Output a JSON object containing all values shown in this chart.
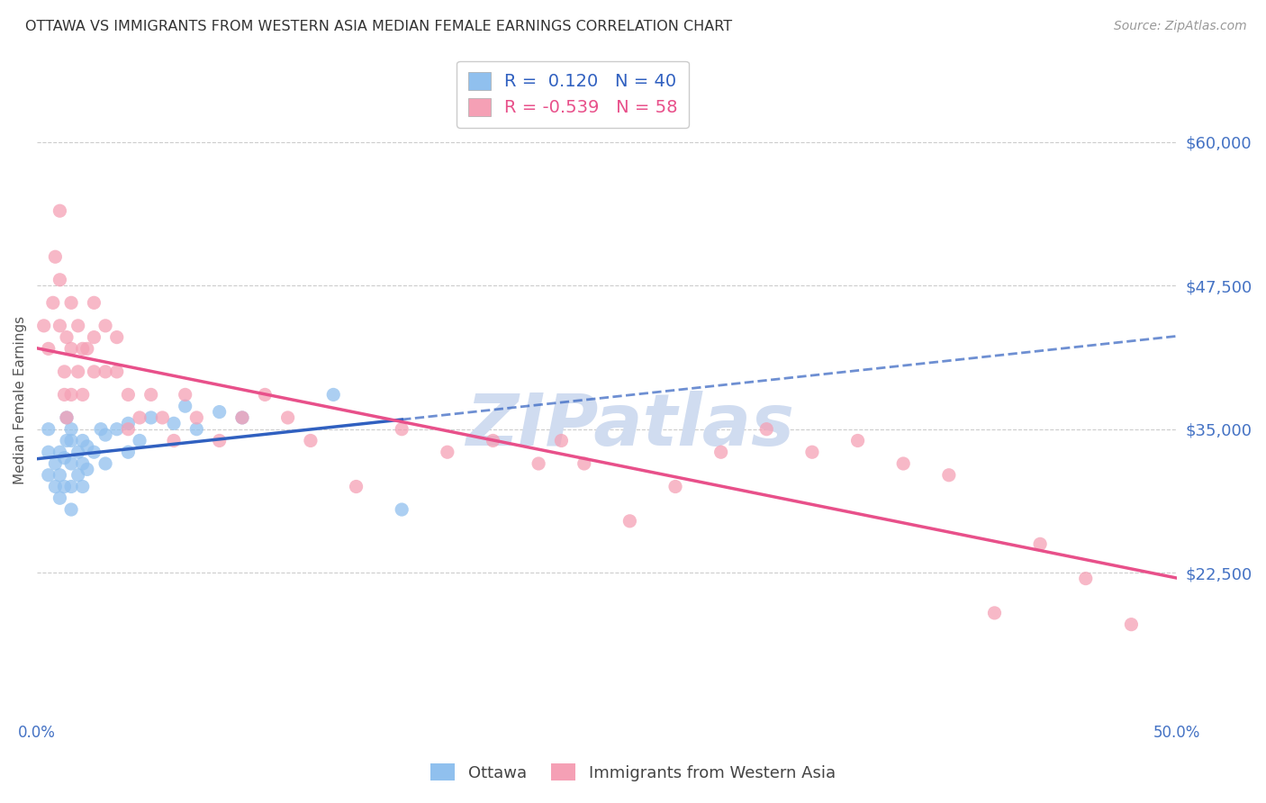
{
  "title": "OTTAWA VS IMMIGRANTS FROM WESTERN ASIA MEDIAN FEMALE EARNINGS CORRELATION CHART",
  "source": "Source: ZipAtlas.com",
  "ylabel": "Median Female Earnings",
  "xlim": [
    0.0,
    0.5
  ],
  "ylim": [
    10000,
    65000
  ],
  "yticks": [
    22500,
    35000,
    47500,
    60000
  ],
  "ytick_labels": [
    "$22,500",
    "$35,000",
    "$47,500",
    "$60,000"
  ],
  "xticks": [
    0.0,
    0.1,
    0.2,
    0.3,
    0.4,
    0.5
  ],
  "xtick_labels": [
    "0.0%",
    "",
    "",
    "",
    "",
    "50.0%"
  ],
  "legend_R1": "0.120",
  "legend_N1": "40",
  "legend_R2": "-0.539",
  "legend_N2": "58",
  "legend_label1": "Ottawa",
  "legend_label2": "Immigrants from Western Asia",
  "color_blue": "#90C0EE",
  "color_pink": "#F5A0B5",
  "color_blue_line": "#3060C0",
  "color_pink_line": "#E8508A",
  "color_legend_text_blue": "#3060C0",
  "color_legend_text_pink": "#E8508A",
  "color_axis_labels": "#4472C4",
  "color_title": "#333333",
  "color_source": "#999999",
  "color_watermark": "#D0DCF0",
  "watermark_text": "ZIPatlas",
  "blue_x": [
    0.005,
    0.005,
    0.005,
    0.008,
    0.008,
    0.01,
    0.01,
    0.01,
    0.012,
    0.012,
    0.013,
    0.013,
    0.015,
    0.015,
    0.015,
    0.015,
    0.015,
    0.018,
    0.018,
    0.02,
    0.02,
    0.02,
    0.022,
    0.022,
    0.025,
    0.028,
    0.03,
    0.03,
    0.035,
    0.04,
    0.04,
    0.045,
    0.05,
    0.06,
    0.065,
    0.07,
    0.08,
    0.09,
    0.13,
    0.16
  ],
  "blue_y": [
    31000,
    33000,
    35000,
    30000,
    32000,
    29000,
    31000,
    33000,
    30000,
    32500,
    34000,
    36000,
    28000,
    30000,
    32000,
    34000,
    35000,
    31000,
    33000,
    30000,
    32000,
    34000,
    31500,
    33500,
    33000,
    35000,
    32000,
    34500,
    35000,
    33000,
    35500,
    34000,
    36000,
    35500,
    37000,
    35000,
    36500,
    36000,
    38000,
    28000
  ],
  "pink_x": [
    0.003,
    0.005,
    0.007,
    0.008,
    0.01,
    0.01,
    0.01,
    0.012,
    0.012,
    0.013,
    0.013,
    0.015,
    0.015,
    0.015,
    0.018,
    0.018,
    0.02,
    0.02,
    0.022,
    0.025,
    0.025,
    0.025,
    0.03,
    0.03,
    0.035,
    0.035,
    0.04,
    0.04,
    0.045,
    0.05,
    0.055,
    0.06,
    0.065,
    0.07,
    0.08,
    0.09,
    0.1,
    0.11,
    0.12,
    0.14,
    0.16,
    0.18,
    0.2,
    0.22,
    0.23,
    0.24,
    0.26,
    0.28,
    0.3,
    0.32,
    0.34,
    0.36,
    0.38,
    0.4,
    0.42,
    0.44,
    0.46,
    0.48
  ],
  "pink_y": [
    44000,
    42000,
    46000,
    50000,
    54000,
    48000,
    44000,
    40000,
    38000,
    43000,
    36000,
    46000,
    42000,
    38000,
    44000,
    40000,
    42000,
    38000,
    42000,
    46000,
    43000,
    40000,
    44000,
    40000,
    43000,
    40000,
    38000,
    35000,
    36000,
    38000,
    36000,
    34000,
    38000,
    36000,
    34000,
    36000,
    38000,
    36000,
    34000,
    30000,
    35000,
    33000,
    34000,
    32000,
    34000,
    32000,
    27000,
    30000,
    33000,
    35000,
    33000,
    34000,
    32000,
    31000,
    19000,
    25000,
    22000,
    18000
  ]
}
